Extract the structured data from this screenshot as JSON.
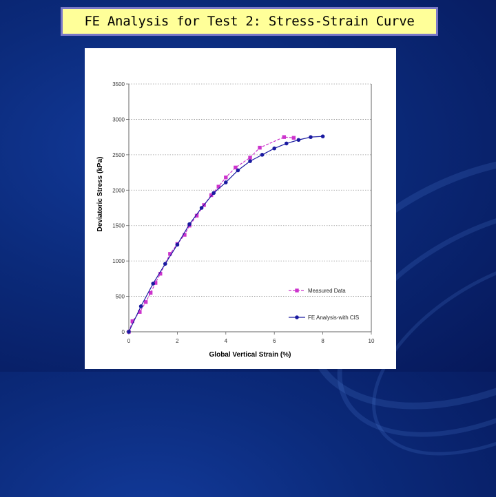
{
  "slide": {
    "title": "FE Analysis for Test 2: Stress-Strain Curve"
  },
  "colors": {
    "background": "#0b2a7a",
    "title_fill": "#ffff99",
    "title_border": "#7a78c8",
    "measured": "#cc33cc",
    "fe": "#1a1aa0"
  },
  "chart_data": {
    "type": "line",
    "title": "",
    "xlabel": "Global Vertical Strain (%)",
    "ylabel": "Deviatoric Stress (kPa)",
    "xlim": [
      0,
      10
    ],
    "ylim": [
      0,
      3500
    ],
    "xticks": [
      "0",
      "2",
      "4",
      "6",
      "8",
      "10"
    ],
    "yticks": [
      "0",
      "500",
      "1000",
      "1500",
      "2000",
      "2500",
      "3000",
      "3500"
    ],
    "grid": "horizontal dotted",
    "legend_position": "bottom-right",
    "series": [
      {
        "name": "Measured Data",
        "marker": "square",
        "color": "#cc33cc",
        "points": [
          [
            0,
            0
          ],
          [
            0.15,
            150
          ],
          [
            0.45,
            280
          ],
          [
            0.7,
            420
          ],
          [
            0.9,
            550
          ],
          [
            1.1,
            690
          ],
          [
            1.3,
            820
          ],
          [
            1.7,
            1100
          ],
          [
            2.0,
            1240
          ],
          [
            2.3,
            1370
          ],
          [
            2.5,
            1500
          ],
          [
            2.8,
            1640
          ],
          [
            3.1,
            1790
          ],
          [
            3.4,
            1930
          ],
          [
            3.7,
            2050
          ],
          [
            4.0,
            2180
          ],
          [
            4.4,
            2320
          ],
          [
            5.0,
            2460
          ],
          [
            5.4,
            2600
          ],
          [
            6.4,
            2750
          ],
          [
            6.8,
            2740
          ]
        ]
      },
      {
        "name": "FE Analysis-with CIS",
        "marker": "circle",
        "color": "#1a1aa0",
        "points": [
          [
            0,
            0
          ],
          [
            0.5,
            360
          ],
          [
            1.0,
            680
          ],
          [
            1.5,
            960
          ],
          [
            2.0,
            1230
          ],
          [
            2.5,
            1520
          ],
          [
            3.0,
            1750
          ],
          [
            3.5,
            1960
          ],
          [
            4.0,
            2110
          ],
          [
            4.5,
            2280
          ],
          [
            5.0,
            2410
          ],
          [
            5.5,
            2500
          ],
          [
            6.0,
            2590
          ],
          [
            6.5,
            2660
          ],
          [
            7.0,
            2710
          ],
          [
            7.5,
            2750
          ],
          [
            8.0,
            2760
          ]
        ]
      }
    ]
  }
}
